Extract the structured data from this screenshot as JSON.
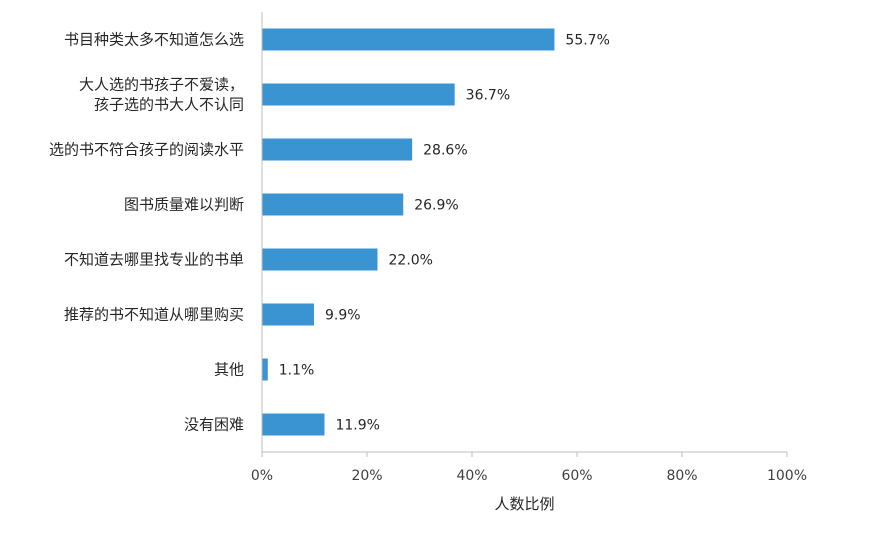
{
  "chart_data": {
    "type": "bar",
    "orientation": "horizontal",
    "categories": [
      [
        "书目种类太多不知道怎么选"
      ],
      [
        "大人选的书孩子不爱读，",
        "孩子选的书大人不认同"
      ],
      [
        "选的书不符合孩子的阅读水平"
      ],
      [
        "图书质量难以判断"
      ],
      [
        "不知道去哪里找专业的书单"
      ],
      [
        "推荐的书不知道从哪里购买"
      ],
      [
        "其他"
      ],
      [
        "没有困难"
      ]
    ],
    "values": [
      55.7,
      36.7,
      28.6,
      26.9,
      22.0,
      9.9,
      1.1,
      11.9
    ],
    "value_labels": [
      "55.7%",
      "36.7%",
      "28.6%",
      "26.9%",
      "22.0%",
      "9.9%",
      "1.1%",
      "11.9%"
    ],
    "xlim": [
      0,
      100
    ],
    "x_ticks": [
      0,
      20,
      40,
      60,
      80,
      100
    ],
    "x_tick_labels": [
      "0%",
      "20%",
      "40%",
      "60%",
      "80%",
      "100%"
    ],
    "xlabel": "人数比例",
    "grid": false,
    "bar_color": "#3a94d1"
  }
}
